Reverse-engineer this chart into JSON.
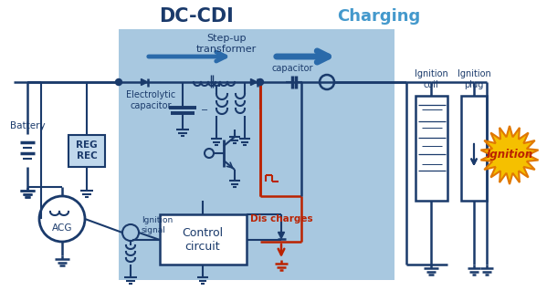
{
  "title_dccdi": "DC-CDI",
  "title_charging": "Charging",
  "label_stepup": "Step-up\ntransformer",
  "label_capacitor": "capacitor",
  "label_electrolytic": "Electrolytic\ncapacitor",
  "label_battery": "Battery",
  "label_regrec": "REG\nREC",
  "label_acg": "ACG",
  "label_ignition_signal": "Ignition\nsignal",
  "label_control": "Control\ncircuit",
  "label_dis_charges": "Dis charges",
  "label_ignition_coil": "Ignition\ncoil",
  "label_ignition_plug": "Ignition\nplug",
  "label_ignition": "Ignition",
  "color_dark_blue": "#1a3a6b",
  "color_bg_blue": "#a8c8e0",
  "color_arrow_blue": "#2a6aaa",
  "color_charging_blue": "#4499cc",
  "color_red": "#bb2200",
  "color_yellow": "#f5c000",
  "color_orange": "#e07800",
  "color_white": "#ffffff",
  "color_regrec_bg": "#c0d8ec"
}
